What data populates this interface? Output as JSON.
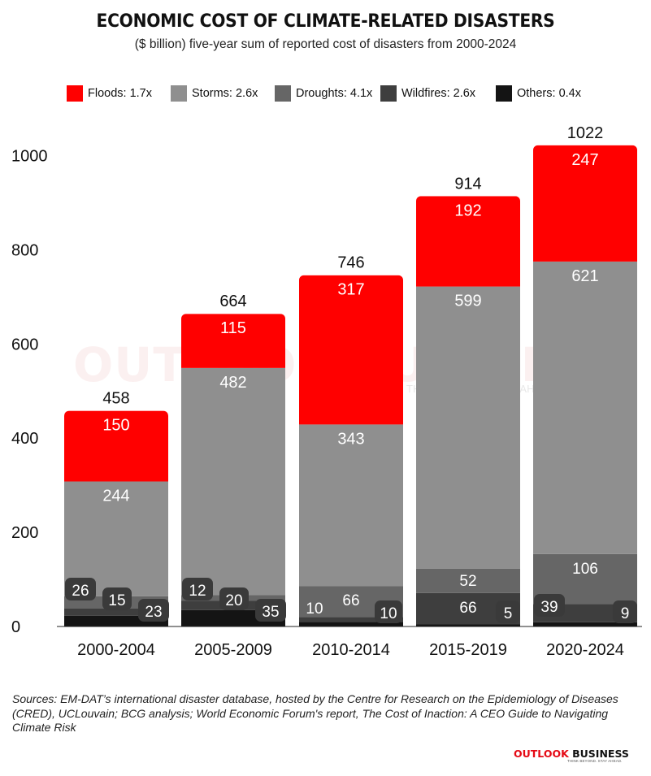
{
  "title": "ECONOMIC COST OF CLIMATE-RELATED DISASTERS",
  "subtitle": "($ billion) five-year sum of reported cost of disasters from 2000-2024",
  "colors": {
    "floods": "#ff0000",
    "storms": "#8f8f8f",
    "droughts": "#666666",
    "wildfires": "#3e3e3e",
    "others": "#141414"
  },
  "legend": [
    {
      "key": "floods",
      "label": "Floods: 1.7x"
    },
    {
      "key": "storms",
      "label": "Storms: 2.6x"
    },
    {
      "key": "droughts",
      "label": "Droughts: 4.1x"
    },
    {
      "key": "wildfires",
      "label": "Wildfires: 2.6x"
    },
    {
      "key": "others",
      "label": "Others: 0.4x"
    }
  ],
  "watermark": {
    "text": "OUTLOOK BUSINESS",
    "tagline": "THINK BEYOND. STAY AHEAD."
  },
  "source": "Sources: EM-DAT’s international disaster database, hosted by the Centre for Research on the Epidemiology of Diseases (CRED), UCLouvain; BCG analysis; World Economic Forum's report, The Cost of Inaction: A CEO Guide to Navigating Climate Risk",
  "logo": {
    "part1": "OUTLOOK ",
    "part2": "BUSINESS",
    "tagline": "THINK BEYOND. STAY AHEAD."
  },
  "chart_data": {
    "type": "bar",
    "stacked": true,
    "categories": [
      "2000-2004",
      "2005-2009",
      "2010-2014",
      "2015-2019",
      "2020-2024"
    ],
    "series": [
      {
        "name": "Others",
        "key": "others",
        "values": [
          23,
          35,
          10,
          5,
          9
        ]
      },
      {
        "name": "Wildfires",
        "key": "wildfires",
        "values": [
          15,
          20,
          10,
          66,
          39
        ]
      },
      {
        "name": "Droughts",
        "key": "droughts",
        "values": [
          26,
          12,
          66,
          52,
          106
        ]
      },
      {
        "name": "Storms",
        "key": "storms",
        "values": [
          244,
          482,
          343,
          599,
          621
        ]
      },
      {
        "name": "Floods",
        "key": "floods",
        "values": [
          150,
          115,
          317,
          192,
          247
        ]
      }
    ],
    "totals": [
      458,
      664,
      746,
      914,
      1022
    ],
    "yticks": [
      0,
      200,
      400,
      600,
      800,
      1000
    ],
    "ylim": [
      0,
      1022
    ],
    "grid": false,
    "legend_position": "top"
  }
}
